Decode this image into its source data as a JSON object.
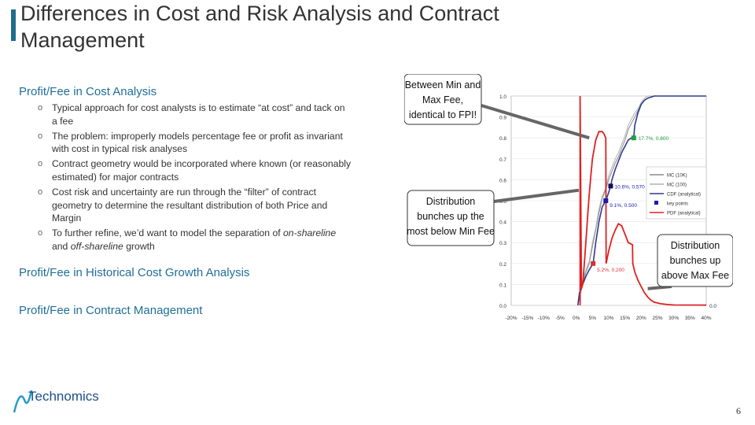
{
  "slide": {
    "title": "Differences in Cost and Risk Analysis and Contract Management",
    "sections": {
      "cost": "Profit/Fee in Cost Analysis",
      "historical": "Profit/Fee in Historical Cost Growth Analysis",
      "contract": "Profit/Fee in Contract Management"
    },
    "bullets": [
      "Typical approach for cost analysts is to estimate “at cost” and tack on a fee",
      "The problem: improperly models percentage fee or profit as invariant with cost in typical risk analyses",
      "Contract geometry would be incorporated where known (or reasonably estimated) for major contracts",
      "Cost risk and uncertainty are run through the “filter” of contract geometry to determine the resultant distribution of both Price and Margin"
    ],
    "bullet5": {
      "pre": "To further refine, we’d want to model the separation of ",
      "em1": "on-shareline",
      "mid": " and ",
      "em2": "off-shareline",
      "post": " growth"
    },
    "bullet_marker": "o",
    "logo_text": "Technomics",
    "page_number": "6"
  },
  "chart_data": {
    "type": "line",
    "x_ticks": [
      "-20%",
      "-15%",
      "-10%",
      "-5%",
      "0%",
      "5%",
      "10%",
      "15%",
      "20%",
      "25%",
      "30%",
      "35%",
      "40%"
    ],
    "y_ticks": [
      "0.0",
      "0.1",
      "0.2",
      "0.3",
      "0.4",
      "0.5",
      "0.6",
      "0.7",
      "0.8",
      "0.9",
      "1.0"
    ],
    "xlim": [
      -20,
      40
    ],
    "ylim": [
      0,
      1
    ],
    "series": [
      {
        "name": "MC (10K)",
        "color": "#8a8a8a",
        "x": [
          0.5,
          2,
          3,
          4,
          5,
          6,
          7,
          8,
          9,
          10,
          11,
          12,
          13,
          14,
          15,
          16,
          17,
          18,
          19,
          20,
          21,
          22,
          24,
          26,
          30,
          40
        ],
        "y": [
          0,
          0.1,
          0.16,
          0.2,
          0.28,
          0.36,
          0.44,
          0.51,
          0.55,
          0.6,
          0.64,
          0.68,
          0.71,
          0.75,
          0.79,
          0.84,
          0.87,
          0.9,
          0.93,
          0.96,
          0.98,
          0.99,
          1.0,
          1.0,
          1.0,
          1.0
        ]
      },
      {
        "name": "MC (100)",
        "color": "#b0b0b0",
        "x": [
          0.5,
          2,
          3,
          4,
          5,
          6,
          7,
          8,
          9,
          10,
          11,
          12,
          13,
          14,
          15,
          16,
          17,
          18,
          19,
          20,
          21,
          22,
          24,
          26,
          30,
          40
        ],
        "y": [
          0,
          0.12,
          0.17,
          0.21,
          0.3,
          0.37,
          0.46,
          0.52,
          0.56,
          0.62,
          0.66,
          0.7,
          0.73,
          0.77,
          0.81,
          0.86,
          0.89,
          0.92,
          0.94,
          0.97,
          0.99,
          1.0,
          1.0,
          1.0,
          1.0,
          1.0
        ]
      },
      {
        "name": "CDF (analytical)",
        "color": "#2e3a8c",
        "x": [
          0.5,
          1,
          2,
          3,
          4,
          5.2,
          6,
          7,
          8,
          9.1,
          10,
          10.6,
          11,
          12,
          13,
          14,
          15,
          16,
          17,
          17.7,
          18,
          19,
          20,
          21,
          22,
          24,
          26,
          30,
          40
        ],
        "y": [
          0,
          0.06,
          0.1,
          0.14,
          0.17,
          0.2,
          0.3,
          0.4,
          0.47,
          0.5,
          0.54,
          0.57,
          0.6,
          0.65,
          0.69,
          0.73,
          0.76,
          0.79,
          0.8,
          0.8,
          0.86,
          0.92,
          0.96,
          0.98,
          0.99,
          1.0,
          1.0,
          1.0,
          1.0
        ]
      },
      {
        "name": "key points",
        "color": "#1a1ab0",
        "style": "markers",
        "x": [
          5.2,
          9.1,
          10.6,
          17.7
        ],
        "y": [
          0.2,
          0.5,
          0.57,
          0.8
        ],
        "labels": [
          "5.2%, 0.200",
          "9.1%, 0.500",
          "10.6%, 0.570",
          "17.7%, 0.800"
        ]
      },
      {
        "name": "PDF (analytical)",
        "color": "#e02020",
        "x": [
          1.2,
          1.2,
          1.6,
          2,
          2.5,
          3,
          3.5,
          4,
          4.5,
          5,
          6,
          7,
          8,
          8.5,
          9.1,
          9.2,
          10,
          11,
          12,
          13,
          14,
          15,
          16,
          17.3,
          17.4,
          18,
          19,
          20,
          21,
          22,
          23,
          24,
          26,
          28,
          30,
          40
        ],
        "y": [
          0,
          1.0,
          0.08,
          0.1,
          0.2,
          0.31,
          0.42,
          0.53,
          0.62,
          0.7,
          0.79,
          0.83,
          0.83,
          0.82,
          0.8,
          0.2,
          0.26,
          0.32,
          0.36,
          0.39,
          0.38,
          0.34,
          0.3,
          0.29,
          0.2,
          0.16,
          0.12,
          0.09,
          0.06,
          0.04,
          0.025,
          0.015,
          0.008,
          0.004,
          0.002,
          0.001
        ]
      }
    ],
    "annotations": [
      {
        "text": [
          "Between Min and",
          "Max Fee,",
          "identical to FPI!"
        ]
      },
      {
        "text": [
          "Distribution",
          "bunches up the",
          "most below Min Fee"
        ]
      },
      {
        "text": [
          "Distribution",
          "bunches up",
          "above Max Fee"
        ]
      }
    ]
  }
}
